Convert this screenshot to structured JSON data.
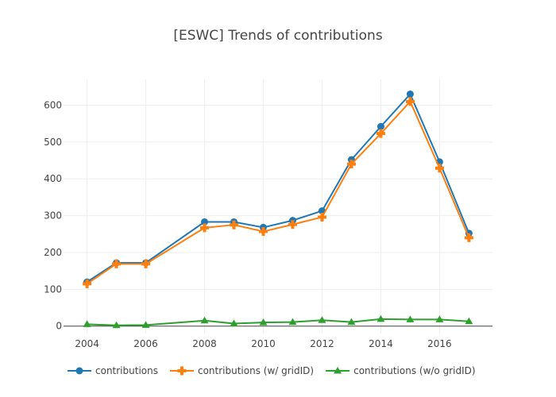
{
  "chart_data": {
    "type": "line",
    "title": "[ESWC] Trends of contributions",
    "xlabel": "",
    "ylabel": "",
    "x": [
      2004,
      2005,
      2006,
      2008,
      2009,
      2010,
      2011,
      2012,
      2013,
      2014,
      2015,
      2016,
      2017
    ],
    "xlim": [
      2003.2,
      2017.8
    ],
    "ylim": [
      -20,
      670
    ],
    "x_ticks": [
      2004,
      2006,
      2008,
      2010,
      2012,
      2014,
      2016
    ],
    "y_ticks": [
      0,
      100,
      200,
      300,
      400,
      500,
      600
    ],
    "grid": true,
    "legend_position": "bottom",
    "series": [
      {
        "name": "contributions",
        "color": "#1f77b4",
        "marker": "circle",
        "values": [
          120,
          172,
          172,
          283,
          283,
          268,
          287,
          313,
          452,
          542,
          630,
          446,
          252
        ]
      },
      {
        "name": "contributions (w/ gridID)",
        "color": "#ff7f0e",
        "marker": "cross",
        "values": [
          115,
          169,
          169,
          267,
          275,
          257,
          276,
          296,
          440,
          523,
          610,
          429,
          240
        ]
      },
      {
        "name": "contributions (w/o gridID)",
        "color": "#2ca02c",
        "marker": "triangle",
        "values": [
          5,
          2,
          3,
          15,
          7,
          10,
          11,
          16,
          11,
          19,
          18,
          18,
          13
        ]
      }
    ]
  }
}
